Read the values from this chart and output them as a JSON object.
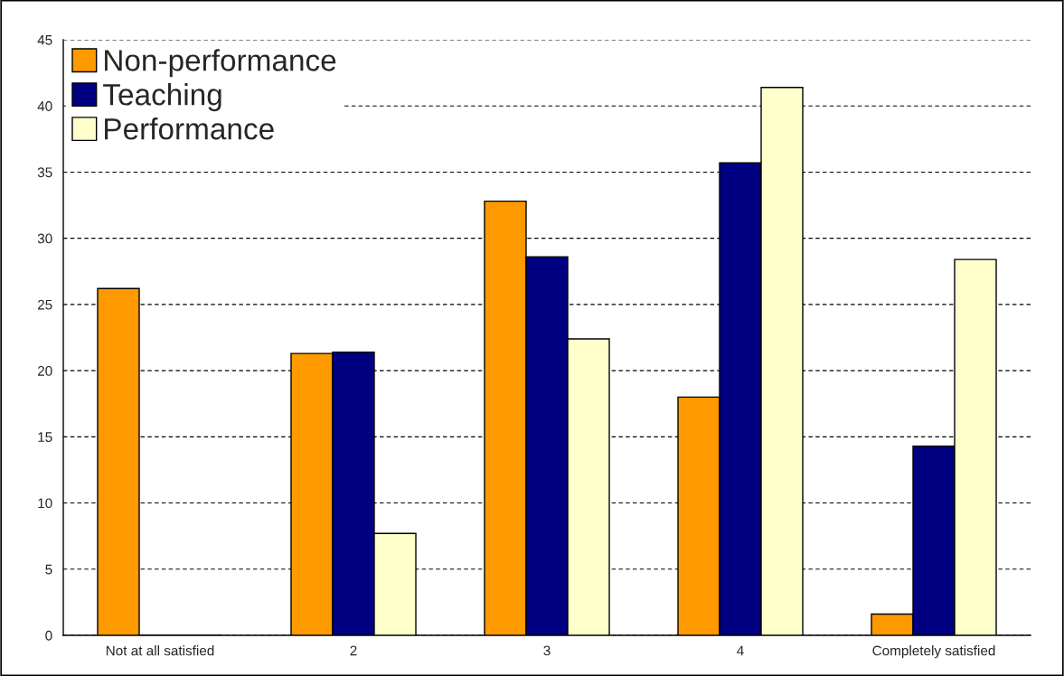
{
  "chart_data": {
    "type": "bar",
    "categories": [
      "Not at all satisfied",
      "2",
      "3",
      "4",
      "Completely satisfied"
    ],
    "series": [
      {
        "name": "Non-performance",
        "color": "#ff9900",
        "values": [
          26.2,
          21.3,
          32.8,
          18.0,
          1.6
        ]
      },
      {
        "name": "Teaching",
        "color": "#000080",
        "values": [
          0,
          21.4,
          28.6,
          35.7,
          14.3
        ]
      },
      {
        "name": "Performance",
        "color": "#ffffcc",
        "values": [
          0,
          7.7,
          22.4,
          41.4,
          28.4
        ]
      }
    ],
    "ylim": [
      0,
      45
    ],
    "yticks": [
      0,
      5,
      10,
      15,
      20,
      25,
      30,
      35,
      40,
      45
    ],
    "grid": "y",
    "legend": "top left"
  }
}
